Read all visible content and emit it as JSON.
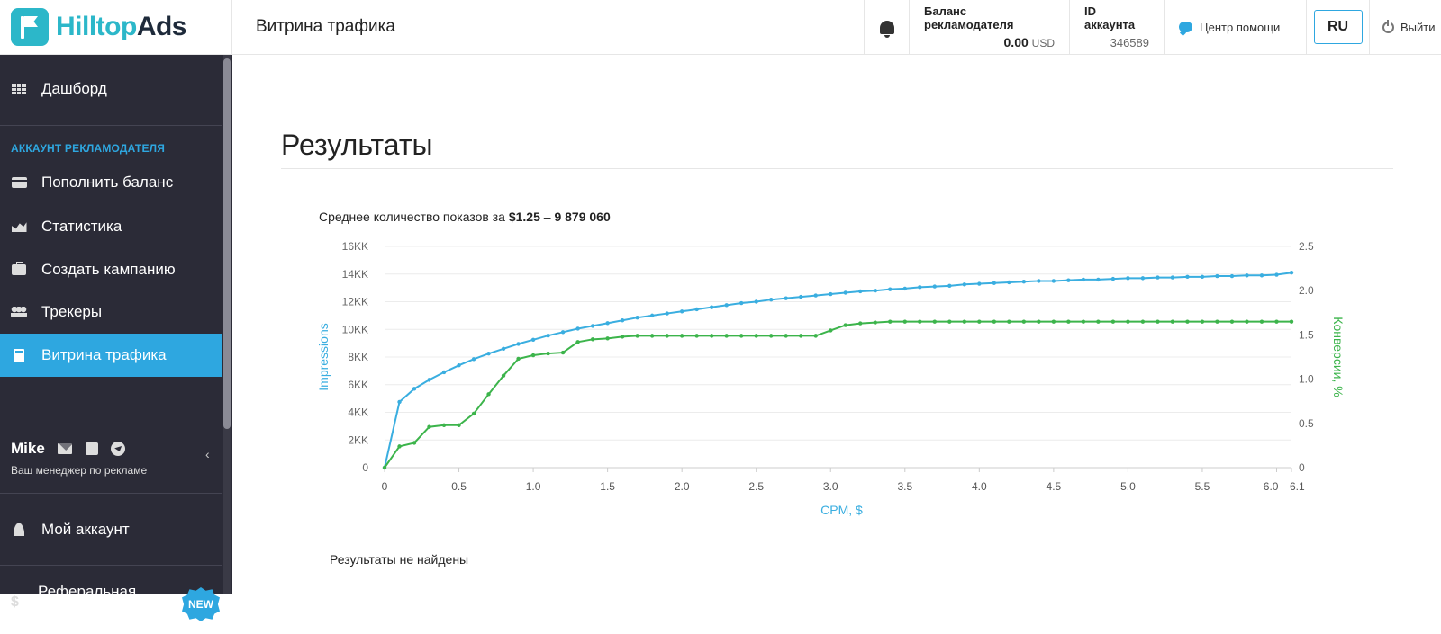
{
  "header": {
    "logo_part1": "Hilltop",
    "logo_part2": "Ads",
    "page_title": "Витрина трафика",
    "balance_label": "Баланс рекламодателя",
    "balance_value": "0.00",
    "balance_currency": "USD",
    "account_label": "ID аккаунта",
    "account_id": "346589",
    "help_label": "Центр помощи",
    "lang": "RU",
    "logout_label": "Выйти"
  },
  "sidebar": {
    "dashboard": "Дашборд",
    "section_label": "АККАУНТ РЕКЛАМОДАТЕЛЯ",
    "items": [
      {
        "label": "Пополнить баланс",
        "icon": "card-icon"
      },
      {
        "label": "Статистика",
        "icon": "chart-icon"
      },
      {
        "label": "Создать кампанию",
        "icon": "briefcase-icon"
      },
      {
        "label": "Трекеры",
        "icon": "users-icon"
      },
      {
        "label": "Витрина трафика",
        "icon": "calculator-icon"
      }
    ],
    "manager_name": "Mike",
    "manager_sub": "Ваш менеджер по рекламе",
    "my_account": "Мой аккаунт",
    "referral": "Реферальная программа",
    "new_badge": "NEW"
  },
  "main": {
    "title": "Результаты",
    "avg_prefix": "Среднее количество показов за",
    "avg_price": "$1.25",
    "avg_sep": "–",
    "avg_value": "9 879 060",
    "no_results": "Результаты не найдены"
  },
  "colors": {
    "accent": "#2ea7e0",
    "impressions": "#3aaee0",
    "conversions": "#3cb44b",
    "sidebar_bg": "#2b2b37"
  },
  "chart_data": {
    "type": "line",
    "xlabel": "CPM, $",
    "ylabel_left": "Impressions",
    "ylabel_right": "Конверсии, %",
    "xlim": [
      0,
      6.1
    ],
    "ylim_left": [
      0,
      16000
    ],
    "ylim_right": [
      0,
      2.5
    ],
    "x_ticks": [
      "0",
      "0.5",
      "1.0",
      "1.5",
      "2.0",
      "2.5",
      "3.0",
      "3.5",
      "4.0",
      "4.5",
      "5.0",
      "5.5",
      "6.0",
      "6.1"
    ],
    "y_left_ticks": [
      "0",
      "2KK",
      "4KK",
      "6KK",
      "8KK",
      "10KK",
      "12KK",
      "14KK",
      "16KK"
    ],
    "y_right_ticks": [
      "0",
      "0.5",
      "1.0",
      "1.5",
      "2.0",
      "2.5"
    ],
    "grid": true,
    "series": [
      {
        "name": "Impressions",
        "axis": "left",
        "x": [
          0,
          0.1,
          0.2,
          0.3,
          0.4,
          0.5,
          0.6,
          0.7,
          0.8,
          0.9,
          1.0,
          1.1,
          1.2,
          1.3,
          1.4,
          1.5,
          1.6,
          1.7,
          1.8,
          1.9,
          2.0,
          2.1,
          2.2,
          2.3,
          2.4,
          2.5,
          2.6,
          2.7,
          2.8,
          2.9,
          3.0,
          3.1,
          3.2,
          3.3,
          3.4,
          3.5,
          3.6,
          3.7,
          3.8,
          3.9,
          4.0,
          4.1,
          4.2,
          4.3,
          4.4,
          4.5,
          4.6,
          4.7,
          4.8,
          4.9,
          5.0,
          5.1,
          5.2,
          5.3,
          5.4,
          5.5,
          5.6,
          5.7,
          5.8,
          5.9,
          6.0,
          6.1
        ],
        "values": [
          0,
          4750,
          5700,
          6350,
          6900,
          7400,
          7850,
          8250,
          8600,
          8950,
          9250,
          9550,
          9800,
          10050,
          10250,
          10450,
          10650,
          10850,
          11000,
          11150,
          11300,
          11450,
          11600,
          11750,
          11900,
          12000,
          12150,
          12250,
          12350,
          12450,
          12550,
          12650,
          12750,
          12800,
          12900,
          12950,
          13050,
          13100,
          13150,
          13250,
          13300,
          13350,
          13400,
          13450,
          13500,
          13500,
          13550,
          13600,
          13600,
          13650,
          13700,
          13700,
          13750,
          13750,
          13800,
          13800,
          13850,
          13850,
          13900,
          13900,
          13950,
          14100
        ]
      },
      {
        "name": "Конверсии, %",
        "axis": "right",
        "x": [
          0,
          0.1,
          0.2,
          0.3,
          0.4,
          0.5,
          0.6,
          0.7,
          0.8,
          0.9,
          1.0,
          1.1,
          1.2,
          1.3,
          1.4,
          1.5,
          1.6,
          1.7,
          1.8,
          1.9,
          2.0,
          2.1,
          2.2,
          2.3,
          2.4,
          2.5,
          2.6,
          2.7,
          2.8,
          2.9,
          3.0,
          3.1,
          3.2,
          3.3,
          3.4,
          3.5,
          3.6,
          3.7,
          3.8,
          3.9,
          4.0,
          4.1,
          4.2,
          4.3,
          4.4,
          4.5,
          4.6,
          4.7,
          4.8,
          4.9,
          5.0,
          5.1,
          5.2,
          5.3,
          5.4,
          5.5,
          5.6,
          5.7,
          5.8,
          5.9,
          6.0,
          6.1
        ],
        "values": [
          0,
          0.24,
          0.28,
          0.46,
          0.48,
          0.48,
          0.61,
          0.83,
          1.04,
          1.23,
          1.27,
          1.29,
          1.3,
          1.42,
          1.45,
          1.46,
          1.48,
          1.49,
          1.49,
          1.49,
          1.49,
          1.49,
          1.49,
          1.49,
          1.49,
          1.49,
          1.49,
          1.49,
          1.49,
          1.49,
          1.55,
          1.61,
          1.63,
          1.64,
          1.65,
          1.65,
          1.65,
          1.65,
          1.65,
          1.65,
          1.65,
          1.65,
          1.65,
          1.65,
          1.65,
          1.65,
          1.65,
          1.65,
          1.65,
          1.65,
          1.65,
          1.65,
          1.65,
          1.65,
          1.65,
          1.65,
          1.65,
          1.65,
          1.65,
          1.65,
          1.65,
          1.65
        ]
      }
    ]
  }
}
